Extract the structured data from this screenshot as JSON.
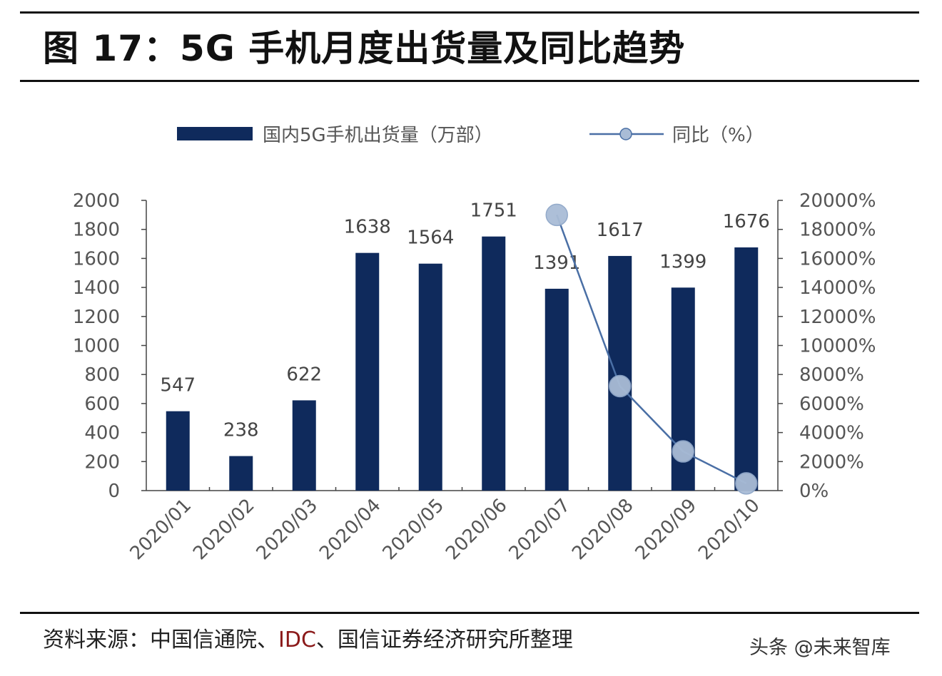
{
  "header": {
    "title": "图 17：5G 手机月度出货量及同比趋势"
  },
  "footer": {
    "source_prefix": "资料来源：中国信通院、",
    "source_highlight": "IDC",
    "source_suffix": "、国信证券经济研究所整理",
    "watermark": "头条 @未来智库"
  },
  "chart_data": {
    "type": "bar",
    "categories": [
      "2020/01",
      "2020/02",
      "2020/03",
      "2020/04",
      "2020/05",
      "2020/06",
      "2020/07",
      "2020/08",
      "2020/09",
      "2020/10"
    ],
    "series": [
      {
        "name": "国内5G手机出货量（万部）",
        "type": "bar",
        "axis": "left",
        "color": "#0f2a5c",
        "values": [
          547,
          238,
          622,
          1638,
          1564,
          1751,
          1391,
          1617,
          1399,
          1676
        ]
      },
      {
        "name": "同比（%）",
        "type": "line",
        "axis": "right",
        "color": "#4a6fa5",
        "marker_color": "#a9bcd6",
        "values": [
          null,
          null,
          null,
          null,
          null,
          null,
          19000,
          7200,
          2700,
          500
        ]
      }
    ],
    "y_left": {
      "ylim": [
        0,
        2000
      ],
      "ticks": [
        0,
        200,
        400,
        600,
        800,
        1000,
        1200,
        1400,
        1600,
        1800,
        2000
      ]
    },
    "y_right": {
      "ylim": [
        0,
        20000
      ],
      "ticks": [
        "0%",
        "2000%",
        "4000%",
        "6000%",
        "8000%",
        "10000%",
        "12000%",
        "14000%",
        "16000%",
        "18000%",
        "20000%"
      ]
    },
    "data_labels": [
      "547",
      "238",
      "622",
      "1638",
      "1564",
      "1751",
      "1391",
      "1617",
      "1399",
      "1676"
    ],
    "legend_position": "top",
    "grid": false
  }
}
